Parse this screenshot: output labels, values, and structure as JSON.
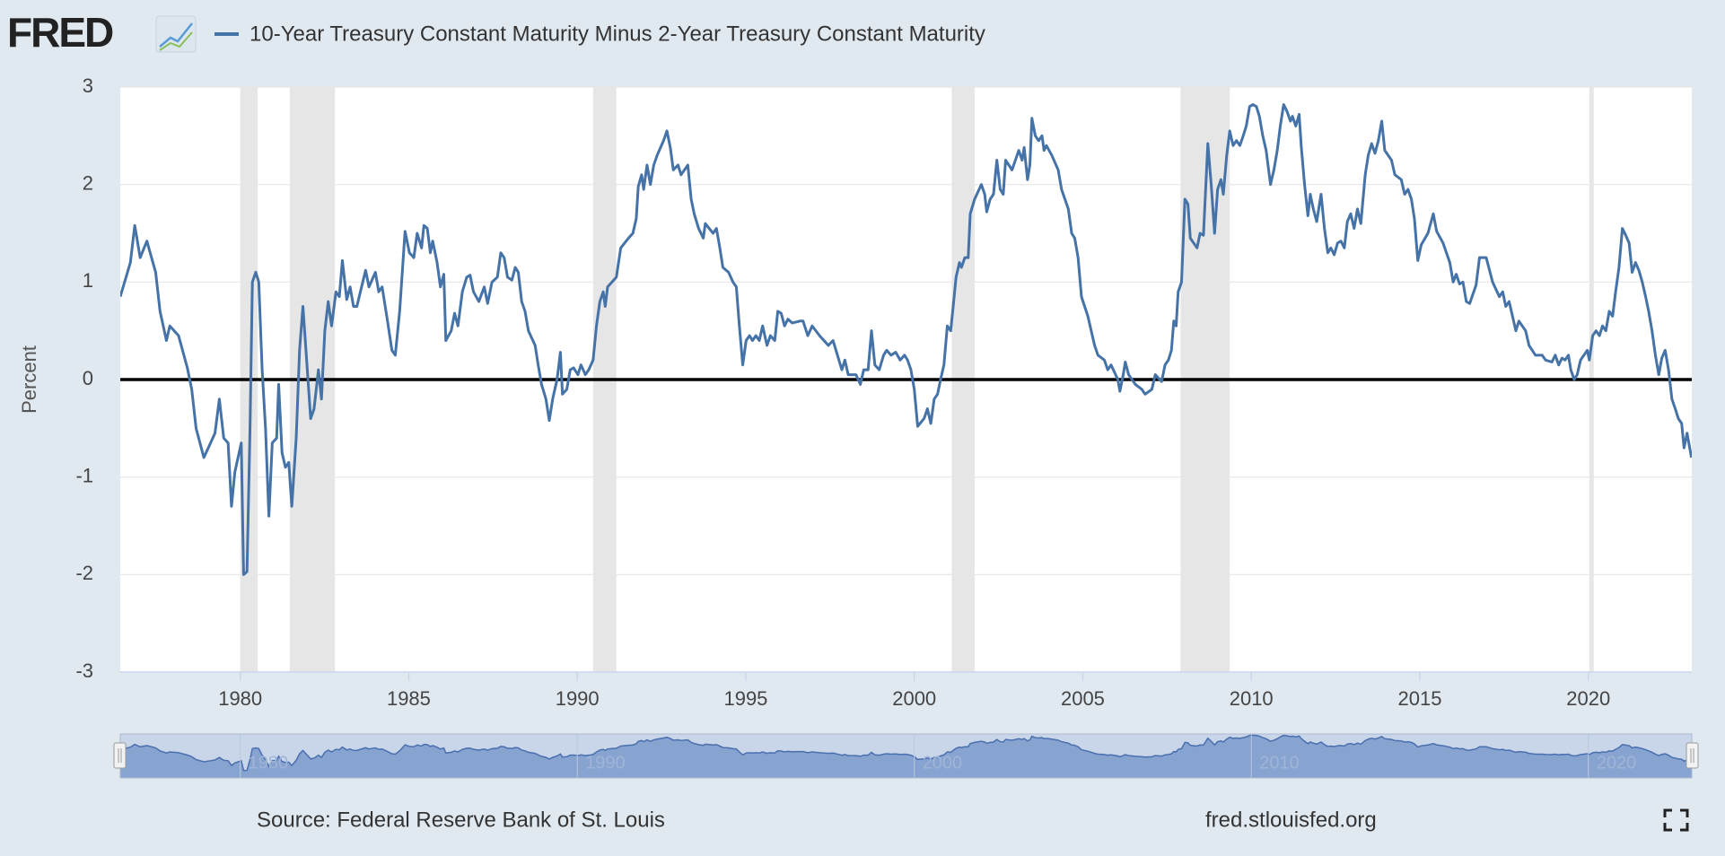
{
  "logo": "FRED",
  "footer": {
    "source": "Source: Federal Reserve Bank of St. Louis",
    "site": "fred.stlouisfed.org"
  },
  "chart_data": {
    "type": "line",
    "y_label": "Percent",
    "grid": true,
    "xlim": [
      1976.44,
      2023.07
    ],
    "xticks": [
      1980,
      1985,
      1990,
      1995,
      2000,
      2005,
      2010,
      2015,
      2020
    ],
    "ylim": [
      -3,
      3
    ],
    "yticks": [
      -3,
      -2,
      -1,
      0,
      1,
      2,
      3
    ],
    "recession_color": "#e6e6e6",
    "recessions": [
      [
        1980.0,
        1980.52
      ],
      [
        1981.47,
        1982.81
      ],
      [
        1990.47,
        1991.16
      ],
      [
        2001.11,
        2001.79
      ],
      [
        2007.9,
        2009.36
      ],
      [
        2020.03,
        2020.16
      ]
    ],
    "navigator_xticks": [
      1980,
      1990,
      2000,
      2010,
      2020
    ],
    "x": [
      1976.44,
      1976.74,
      1976.87,
      1977.03,
      1977.23,
      1977.49,
      1977.62,
      1977.81,
      1977.91,
      1978.17,
      1978.43,
      1978.56,
      1978.69,
      1978.92,
      1979.12,
      1979.25,
      1979.38,
      1979.51,
      1979.64,
      1979.74,
      1979.84,
      1980.03,
      1980.1,
      1980.2,
      1980.29,
      1980.36,
      1980.46,
      1980.55,
      1980.65,
      1980.75,
      1980.85,
      1980.95,
      1981.08,
      1981.14,
      1981.24,
      1981.34,
      1981.44,
      1981.53,
      1981.66,
      1981.76,
      1981.86,
      1981.96,
      1982.09,
      1982.19,
      1982.32,
      1982.41,
      1982.51,
      1982.61,
      1982.71,
      1982.84,
      1982.94,
      1983.03,
      1983.16,
      1983.26,
      1983.36,
      1983.46,
      1983.72,
      1983.82,
      1984.01,
      1984.11,
      1984.21,
      1984.37,
      1984.5,
      1984.6,
      1984.73,
      1984.89,
      1985.02,
      1985.15,
      1985.25,
      1985.38,
      1985.45,
      1985.55,
      1985.64,
      1985.71,
      1985.84,
      1985.94,
      1986.04,
      1986.1,
      1986.26,
      1986.36,
      1986.46,
      1986.59,
      1986.72,
      1986.82,
      1986.92,
      1987.08,
      1987.24,
      1987.34,
      1987.47,
      1987.63,
      1987.73,
      1987.83,
      1987.93,
      1988.06,
      1988.16,
      1988.25,
      1988.35,
      1988.45,
      1988.55,
      1988.75,
      1988.84,
      1988.94,
      1989.07,
      1989.17,
      1989.27,
      1989.4,
      1989.5,
      1989.56,
      1989.69,
      1989.79,
      1989.89,
      1990.02,
      1990.11,
      1990.24,
      1990.34,
      1990.47,
      1990.57,
      1990.67,
      1990.77,
      1990.83,
      1990.9,
      1991.16,
      1991.29,
      1991.52,
      1991.65,
      1991.75,
      1991.81,
      1991.91,
      1991.97,
      1992.07,
      1992.17,
      1992.27,
      1992.37,
      1992.56,
      1992.66,
      1992.76,
      1992.85,
      1992.99,
      1993.08,
      1993.28,
      1993.38,
      1993.47,
      1993.6,
      1993.74,
      1993.8,
      1994.03,
      1994.13,
      1994.23,
      1994.32,
      1994.49,
      1994.62,
      1994.72,
      1994.81,
      1994.91,
      1995.01,
      1995.11,
      1995.2,
      1995.3,
      1995.4,
      1995.5,
      1995.63,
      1995.73,
      1995.86,
      1995.95,
      1996.05,
      1996.15,
      1996.25,
      1996.38,
      1996.61,
      1996.7,
      1996.84,
      1996.97,
      1997.19,
      1997.45,
      1997.59,
      1997.72,
      1997.85,
      1997.94,
      1998.04,
      1998.27,
      1998.4,
      1998.5,
      1998.63,
      1998.73,
      1998.83,
      1998.96,
      1999.09,
      1999.18,
      1999.31,
      1999.45,
      1999.58,
      1999.71,
      1999.8,
      1999.9,
      2000.0,
      2000.1,
      2000.29,
      2000.39,
      2000.49,
      2000.59,
      2000.69,
      2000.78,
      2000.88,
      2000.98,
      2001.08,
      2001.14,
      2001.24,
      2001.34,
      2001.4,
      2001.5,
      2001.6,
      2001.66,
      2001.79,
      2001.99,
      2002.09,
      2002.15,
      2002.25,
      2002.35,
      2002.45,
      2002.55,
      2002.64,
      2002.71,
      2002.9,
      2003.1,
      2003.2,
      2003.26,
      2003.36,
      2003.43,
      2003.49,
      2003.59,
      2003.69,
      2003.79,
      2003.85,
      2003.92,
      2004.08,
      2004.27,
      2004.37,
      2004.57,
      2004.67,
      2004.76,
      2004.86,
      2004.96,
      2005.15,
      2005.35,
      2005.45,
      2005.64,
      2005.74,
      2005.84,
      2006.04,
      2006.1,
      2006.2,
      2006.26,
      2006.36,
      2006.56,
      2006.75,
      2006.85,
      2007.05,
      2007.15,
      2007.34,
      2007.44,
      2007.54,
      2007.63,
      2007.7,
      2007.77,
      2007.83,
      2007.93,
      2008.03,
      2008.12,
      2008.19,
      2008.39,
      2008.48,
      2008.58,
      2008.71,
      2008.81,
      2008.91,
      2009.0,
      2009.1,
      2009.17,
      2009.27,
      2009.36,
      2009.46,
      2009.56,
      2009.66,
      2009.76,
      2009.85,
      2009.95,
      2010.05,
      2010.15,
      2010.24,
      2010.34,
      2010.44,
      2010.57,
      2010.67,
      2010.77,
      2010.86,
      2010.96,
      2011.06,
      2011.16,
      2011.22,
      2011.32,
      2011.42,
      2011.48,
      2011.58,
      2011.68,
      2011.75,
      2011.84,
      2011.94,
      2012.07,
      2012.17,
      2012.27,
      2012.36,
      2012.46,
      2012.56,
      2012.66,
      2012.76,
      2012.85,
      2012.95,
      2013.05,
      2013.15,
      2013.25,
      2013.38,
      2013.47,
      2013.57,
      2013.67,
      2013.77,
      2013.87,
      2013.96,
      2014.16,
      2014.26,
      2014.45,
      2014.55,
      2014.65,
      2014.75,
      2014.84,
      2014.94,
      2015.04,
      2015.24,
      2015.4,
      2015.5,
      2015.69,
      2015.89,
      2015.99,
      2016.08,
      2016.18,
      2016.28,
      2016.38,
      2016.48,
      2016.67,
      2016.77,
      2016.97,
      2017.16,
      2017.36,
      2017.46,
      2017.55,
      2017.65,
      2017.85,
      2017.94,
      2018.14,
      2018.24,
      2018.43,
      2018.63,
      2018.73,
      2018.92,
      2019.02,
      2019.12,
      2019.22,
      2019.31,
      2019.41,
      2019.48,
      2019.58,
      2019.67,
      2019.77,
      2019.87,
      2019.97,
      2020.03,
      2020.13,
      2020.23,
      2020.33,
      2020.42,
      2020.52,
      2020.62,
      2020.72,
      2020.81,
      2020.91,
      2021.01,
      2021.11,
      2021.21,
      2021.3,
      2021.4,
      2021.5,
      2021.6,
      2021.7,
      2021.79,
      2021.89,
      2021.99,
      2022.09,
      2022.18,
      2022.28,
      2022.38,
      2022.48,
      2022.58,
      2022.67,
      2022.77,
      2022.84,
      2022.93,
      2023.06
    ],
    "series": [
      {
        "name": "10-Year Treasury Constant Maturity Minus 2-Year Treasury Constant Maturity",
        "color": "#4572a7",
        "values": [
          0.85,
          1.2,
          1.58,
          1.25,
          1.42,
          1.1,
          0.7,
          0.4,
          0.55,
          0.45,
          0.12,
          -0.1,
          -0.5,
          -0.8,
          -0.65,
          -0.55,
          -0.2,
          -0.6,
          -0.65,
          -1.3,
          -0.95,
          -0.65,
          -2.0,
          -1.97,
          -0.5,
          1.0,
          1.1,
          1.0,
          0.1,
          -0.5,
          -1.4,
          -0.65,
          -0.6,
          -0.05,
          -0.75,
          -0.9,
          -0.85,
          -1.3,
          -0.6,
          0.3,
          0.75,
          0.25,
          -0.4,
          -0.3,
          0.1,
          -0.2,
          0.5,
          0.8,
          0.55,
          0.9,
          0.85,
          1.22,
          0.82,
          0.95,
          0.75,
          0.75,
          1.12,
          0.95,
          1.1,
          0.9,
          0.95,
          0.6,
          0.3,
          0.25,
          0.7,
          1.52,
          1.3,
          1.25,
          1.5,
          1.35,
          1.58,
          1.55,
          1.3,
          1.42,
          1.2,
          0.95,
          1.08,
          0.4,
          0.5,
          0.68,
          0.55,
          0.9,
          1.05,
          1.07,
          0.9,
          0.8,
          0.95,
          0.78,
          1.0,
          1.05,
          1.3,
          1.25,
          1.05,
          1.02,
          1.15,
          1.1,
          0.8,
          0.7,
          0.5,
          0.35,
          0.15,
          -0.05,
          -0.2,
          -0.42,
          -0.2,
          0.0,
          0.28,
          -0.15,
          -0.1,
          0.1,
          0.12,
          0.05,
          0.15,
          0.05,
          0.1,
          0.2,
          0.55,
          0.8,
          0.9,
          0.75,
          0.95,
          1.05,
          1.35,
          1.45,
          1.5,
          1.65,
          1.98,
          2.1,
          1.95,
          2.2,
          2.0,
          2.2,
          2.3,
          2.45,
          2.55,
          2.38,
          2.15,
          2.2,
          2.1,
          2.2,
          1.85,
          1.7,
          1.55,
          1.45,
          1.6,
          1.5,
          1.55,
          1.35,
          1.15,
          1.1,
          1.0,
          0.95,
          0.55,
          0.15,
          0.4,
          0.45,
          0.4,
          0.45,
          0.4,
          0.55,
          0.35,
          0.45,
          0.4,
          0.7,
          0.68,
          0.55,
          0.62,
          0.58,
          0.6,
          0.6,
          0.45,
          0.55,
          0.45,
          0.35,
          0.4,
          0.25,
          0.1,
          0.2,
          0.05,
          0.05,
          -0.05,
          0.1,
          0.1,
          0.5,
          0.15,
          0.1,
          0.25,
          0.3,
          0.25,
          0.28,
          0.2,
          0.25,
          0.2,
          0.1,
          -0.1,
          -0.48,
          -0.4,
          -0.3,
          -0.45,
          -0.2,
          -0.15,
          0.0,
          0.15,
          0.55,
          0.5,
          0.7,
          1.05,
          1.2,
          1.15,
          1.25,
          1.25,
          1.7,
          1.85,
          2.0,
          1.9,
          1.72,
          1.85,
          1.9,
          2.25,
          1.95,
          1.9,
          2.25,
          2.15,
          2.35,
          2.25,
          2.38,
          2.05,
          2.2,
          2.68,
          2.5,
          2.45,
          2.5,
          2.35,
          2.4,
          2.3,
          2.15,
          1.95,
          1.75,
          1.5,
          1.45,
          1.25,
          0.85,
          0.65,
          0.35,
          0.25,
          0.2,
          0.1,
          0.15,
          0.0,
          -0.12,
          0.05,
          0.18,
          0.05,
          -0.05,
          -0.1,
          -0.15,
          -0.1,
          0.05,
          -0.02,
          0.15,
          0.2,
          0.3,
          0.6,
          0.55,
          0.9,
          1.0,
          1.85,
          1.8,
          1.45,
          1.35,
          1.5,
          1.48,
          2.42,
          2.0,
          1.5,
          1.95,
          2.05,
          1.9,
          2.3,
          2.55,
          2.4,
          2.45,
          2.4,
          2.5,
          2.6,
          2.8,
          2.82,
          2.8,
          2.7,
          2.5,
          2.35,
          2.0,
          2.15,
          2.35,
          2.6,
          2.82,
          2.75,
          2.65,
          2.7,
          2.6,
          2.72,
          2.4,
          2.0,
          1.68,
          1.9,
          1.75,
          1.62,
          1.9,
          1.55,
          1.3,
          1.35,
          1.28,
          1.4,
          1.42,
          1.35,
          1.62,
          1.7,
          1.55,
          1.75,
          1.6,
          2.1,
          2.3,
          2.42,
          2.32,
          2.45,
          2.65,
          2.35,
          2.25,
          2.1,
          2.05,
          1.9,
          1.95,
          1.85,
          1.65,
          1.22,
          1.38,
          1.5,
          1.7,
          1.52,
          1.4,
          1.2,
          1.0,
          1.08,
          0.98,
          1.0,
          0.8,
          0.78,
          0.97,
          1.25,
          1.25,
          1.0,
          0.85,
          0.9,
          0.75,
          0.8,
          0.5,
          0.6,
          0.5,
          0.35,
          0.25,
          0.25,
          0.2,
          0.18,
          0.25,
          0.15,
          0.22,
          0.2,
          0.25,
          0.1,
          0.0,
          0.05,
          0.2,
          0.25,
          0.3,
          0.2,
          0.45,
          0.5,
          0.45,
          0.55,
          0.5,
          0.7,
          0.65,
          0.9,
          1.15,
          1.55,
          1.48,
          1.4,
          1.1,
          1.2,
          1.12,
          1.0,
          0.85,
          0.7,
          0.5,
          0.25,
          0.05,
          0.22,
          0.3,
          0.1,
          -0.2,
          -0.3,
          -0.4,
          -0.45,
          -0.7,
          -0.55,
          -0.8
        ]
      }
    ]
  }
}
